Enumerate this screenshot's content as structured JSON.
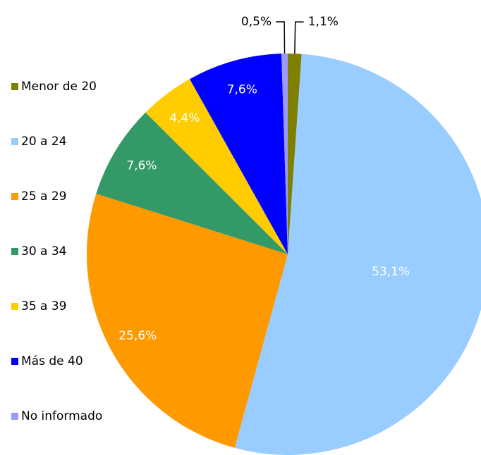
{
  "chart_data": {
    "type": "pie",
    "categories": [
      "Menor de 20",
      "20 a 24",
      "25 a 29",
      "30 a 34",
      "35 a 39",
      "Más de 40",
      "No informado"
    ],
    "values": [
      1.1,
      53.1,
      25.6,
      7.6,
      4.4,
      7.6,
      0.5
    ],
    "value_labels": [
      "1,1%",
      "53,1%",
      "25,6%",
      "7,6%",
      "4,4%",
      "7,6%",
      "0,5%"
    ],
    "colors": [
      "#808000",
      "#99ccff",
      "#ff9900",
      "#339966",
      "#ffcc00",
      "#0000ff",
      "#9999ff"
    ],
    "legend": "left"
  }
}
